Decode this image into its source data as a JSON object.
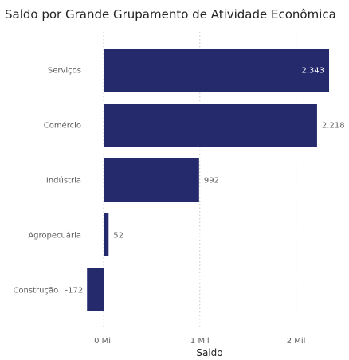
{
  "chart_data": {
    "type": "bar",
    "orientation": "horizontal",
    "title": "Saldo por Grande Grupamento de Atividade Econômica",
    "xlabel": "Saldo",
    "ylabel": "",
    "categories": [
      "Serviços",
      "Comércio",
      "Indústria",
      "Agropecuária",
      "Construção"
    ],
    "values": [
      2343,
      2218,
      992,
      52,
      -172
    ],
    "value_labels": [
      "2.343",
      "2.218",
      "992",
      "52",
      "-172"
    ],
    "xlim": [
      -200,
      2400
    ],
    "x_ticks": [
      0,
      1000,
      2000
    ],
    "x_tick_labels": [
      "0 Mil",
      "1 Mil",
      "2 Mil"
    ],
    "grid": true,
    "legend": "none",
    "colors": {
      "bar": "#252a6d",
      "label_inside": "#ffffff",
      "label_outside": "#605e5c",
      "grid": "#c8c6c4"
    }
  }
}
